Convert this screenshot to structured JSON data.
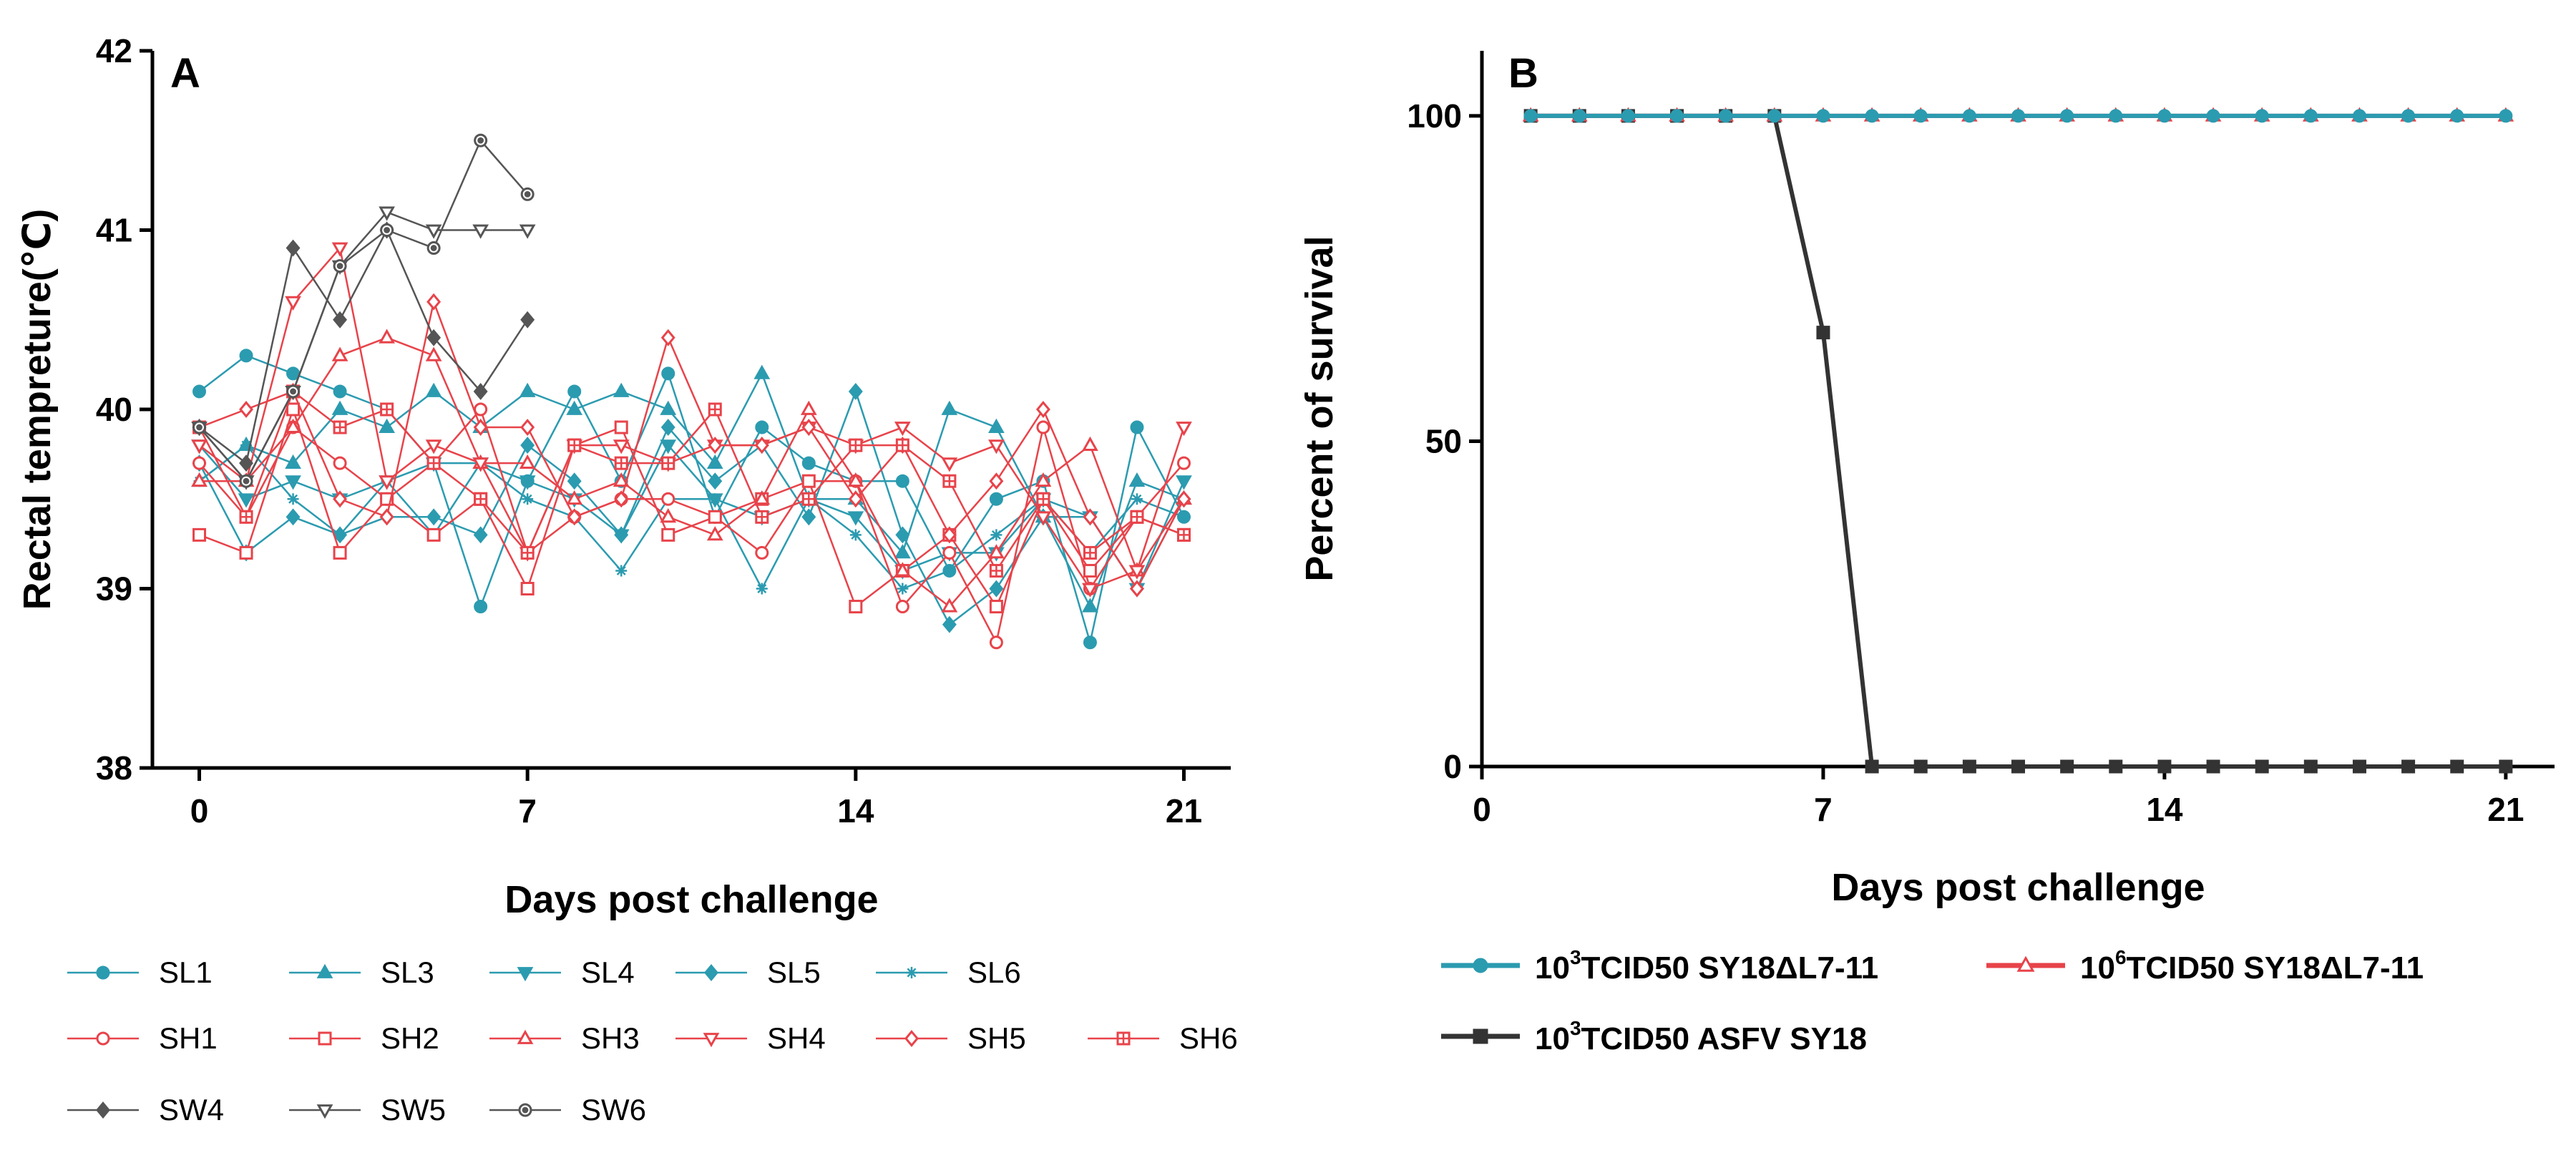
{
  "chart_data": [
    {
      "panel_label": "A",
      "type": "line",
      "xlabel": "Days post challenge",
      "ylabel": "Rectal tempreture(℃)",
      "xlim": [
        -1,
        22
      ],
      "ylim": [
        38,
        42
      ],
      "xticks": [
        0,
        7,
        14,
        21
      ],
      "yticks": [
        38,
        39,
        40,
        41,
        42
      ],
      "grid": false,
      "legend_position": "bottom",
      "series": [
        {
          "name": "SL1",
          "color": "#2b9bb0",
          "marker": "circle",
          "x": [
            0,
            1,
            2,
            3,
            4,
            5,
            6,
            7,
            8,
            9,
            10,
            11,
            12,
            13,
            14,
            15,
            16,
            17,
            18,
            19,
            20,
            21
          ],
          "values": [
            40.1,
            40.3,
            40.2,
            40.1,
            40.0,
            39.7,
            38.9,
            39.6,
            40.1,
            39.6,
            40.2,
            39.4,
            39.9,
            39.7,
            39.6,
            39.6,
            39.1,
            39.5,
            39.6,
            38.7,
            39.9,
            39.4
          ]
        },
        {
          "name": "SL3",
          "color": "#2b9bb0",
          "marker": "triangle-up",
          "x": [
            0,
            1,
            2,
            3,
            4,
            5,
            6,
            7,
            8,
            9,
            10,
            11,
            12,
            13,
            14,
            15,
            16,
            17,
            18,
            19,
            20,
            21
          ],
          "values": [
            39.6,
            39.8,
            39.7,
            40.0,
            39.9,
            40.1,
            39.9,
            40.1,
            40.0,
            40.1,
            40.0,
            39.7,
            40.2,
            39.5,
            39.5,
            39.2,
            40.0,
            39.9,
            39.4,
            38.9,
            39.6,
            39.5
          ]
        },
        {
          "name": "SL4",
          "color": "#2b9bb0",
          "marker": "triangle-down",
          "x": [
            0,
            1,
            2,
            3,
            4,
            5,
            6,
            7,
            8,
            9,
            10,
            11,
            12,
            13,
            14,
            15,
            16,
            17,
            18,
            19,
            20,
            21
          ],
          "values": [
            39.8,
            39.5,
            39.6,
            39.5,
            39.6,
            39.7,
            39.7,
            39.6,
            39.5,
            39.3,
            39.8,
            39.5,
            39.4,
            39.5,
            39.4,
            39.1,
            39.2,
            39.2,
            39.5,
            39.4,
            39.0,
            39.6
          ]
        },
        {
          "name": "SL5",
          "color": "#2b9bb0",
          "marker": "diamond",
          "x": [
            0,
            1,
            2,
            3,
            4,
            5,
            6,
            7,
            8,
            9,
            10,
            11,
            12,
            13,
            14,
            15,
            16,
            17,
            18,
            19,
            20,
            21
          ],
          "values": [
            39.7,
            39.2,
            39.4,
            39.3,
            39.4,
            39.4,
            39.3,
            39.8,
            39.6,
            39.3,
            39.9,
            39.6,
            39.8,
            39.4,
            40.1,
            39.3,
            38.8,
            39.0,
            39.4,
            39.4,
            39.0,
            39.5
          ]
        },
        {
          "name": "SL6",
          "color": "#2b9bb0",
          "marker": "asterisk",
          "x": [
            0,
            1,
            2,
            3,
            4,
            5,
            6,
            7,
            8,
            9,
            10,
            11,
            12,
            13,
            14,
            15,
            16,
            17,
            18,
            19,
            20,
            21
          ],
          "values": [
            39.6,
            39.8,
            39.5,
            39.3,
            39.6,
            39.3,
            39.7,
            39.5,
            39.4,
            39.1,
            39.5,
            39.5,
            39.0,
            39.5,
            39.3,
            39.0,
            39.1,
            39.3,
            39.5,
            39.2,
            39.5,
            39.4
          ]
        },
        {
          "name": "SH1",
          "color": "#e8434a",
          "marker": "circle-open",
          "x": [
            0,
            1,
            2,
            3,
            4,
            5,
            6,
            7,
            8,
            9,
            10,
            11,
            12,
            13,
            14,
            15,
            16,
            17,
            18,
            19,
            20,
            21
          ],
          "values": [
            39.7,
            39.4,
            39.9,
            39.7,
            39.5,
            39.7,
            40.0,
            39.2,
            39.4,
            39.5,
            39.5,
            39.4,
            39.2,
            39.6,
            39.6,
            38.9,
            39.2,
            38.7,
            39.9,
            39.0,
            39.4,
            39.7
          ]
        },
        {
          "name": "SH2",
          "color": "#e8434a",
          "marker": "square-open",
          "x": [
            0,
            1,
            2,
            3,
            4,
            5,
            6,
            7,
            8,
            9,
            10,
            11,
            12,
            13,
            14,
            15,
            16,
            17,
            18,
            19,
            20,
            21
          ],
          "values": [
            39.3,
            39.2,
            40.0,
            39.2,
            39.5,
            39.3,
            39.5,
            39.0,
            39.8,
            39.9,
            39.3,
            39.4,
            39.5,
            39.6,
            38.9,
            39.1,
            39.3,
            38.9,
            39.5,
            39.1,
            39.4,
            39.3
          ]
        },
        {
          "name": "SH3",
          "color": "#e8434a",
          "marker": "triangle-up-open",
          "x": [
            0,
            1,
            2,
            3,
            4,
            5,
            6,
            7,
            8,
            9,
            10,
            11,
            12,
            13,
            14,
            15,
            16,
            17,
            18,
            19,
            20,
            21
          ],
          "values": [
            39.6,
            39.6,
            39.9,
            40.3,
            40.4,
            40.3,
            39.7,
            39.7,
            39.5,
            39.6,
            39.4,
            39.3,
            39.5,
            40.0,
            39.6,
            39.1,
            38.9,
            39.2,
            39.6,
            39.8,
            39.1,
            39.5
          ]
        },
        {
          "name": "SH4",
          "color": "#e8434a",
          "marker": "triangle-down-open",
          "x": [
            0,
            1,
            2,
            3,
            4,
            5,
            6,
            7,
            8,
            9,
            10,
            11,
            12,
            13,
            14,
            15,
            16,
            17,
            18,
            19,
            20,
            21
          ],
          "values": [
            39.8,
            39.6,
            40.6,
            40.9,
            39.6,
            39.8,
            39.7,
            39.2,
            39.8,
            39.8,
            39.7,
            39.8,
            39.8,
            39.9,
            39.8,
            39.9,
            39.7,
            39.8,
            39.4,
            39.0,
            39.1,
            39.9
          ]
        },
        {
          "name": "SH5",
          "color": "#e8434a",
          "marker": "diamond-open",
          "x": [
            0,
            1,
            2,
            3,
            4,
            5,
            6,
            7,
            8,
            9,
            10,
            11,
            12,
            13,
            14,
            15,
            16,
            17,
            18,
            19,
            20,
            21
          ],
          "values": [
            39.9,
            40.0,
            40.1,
            39.5,
            39.4,
            40.6,
            39.9,
            39.9,
            39.4,
            39.5,
            40.4,
            39.8,
            39.8,
            39.9,
            39.5,
            39.8,
            39.3,
            39.6,
            40.0,
            39.4,
            39.0,
            39.5
          ]
        },
        {
          "name": "SH6",
          "color": "#e8434a",
          "marker": "square-cross",
          "x": [
            0,
            1,
            2,
            3,
            4,
            5,
            6,
            7,
            8,
            9,
            10,
            11,
            12,
            13,
            14,
            15,
            16,
            17,
            18,
            19,
            20,
            21
          ],
          "values": [
            39.9,
            39.4,
            40.1,
            39.9,
            40.0,
            39.7,
            39.5,
            39.2,
            39.8,
            39.7,
            39.7,
            40.0,
            39.4,
            39.5,
            39.8,
            39.8,
            39.6,
            39.1,
            39.5,
            39.2,
            39.4,
            39.3
          ]
        },
        {
          "name": "SW4",
          "color": "#555555",
          "marker": "diamond",
          "x": [
            0,
            1,
            2,
            3,
            4,
            5,
            6,
            7
          ],
          "values": [
            39.9,
            39.7,
            40.9,
            40.5,
            41.0,
            40.4,
            40.1,
            40.5
          ]
        },
        {
          "name": "SW5",
          "color": "#555555",
          "marker": "triangle-down-open",
          "x": [
            0,
            1,
            2,
            3,
            4,
            5,
            6,
            7
          ],
          "values": [
            39.9,
            39.6,
            40.1,
            40.8,
            41.1,
            41.0,
            41.0,
            41.0
          ]
        },
        {
          "name": "SW6",
          "color": "#555555",
          "marker": "circle-dot",
          "x": [
            0,
            1,
            2,
            3,
            4,
            5,
            6,
            7
          ],
          "values": [
            39.9,
            39.6,
            40.1,
            40.8,
            41.0,
            40.9,
            41.5,
            41.2
          ]
        }
      ]
    },
    {
      "panel_label": "B",
      "type": "line",
      "xlabel": "Days post challenge",
      "ylabel": "Percent of survival",
      "xlim": [
        0,
        22
      ],
      "ylim": [
        0,
        110
      ],
      "xticks": [
        0,
        7,
        14,
        21
      ],
      "yticks": [
        0,
        50,
        100
      ],
      "grid": false,
      "legend_position": "bottom",
      "series": [
        {
          "name_pre": "10",
          "name_sup": "3",
          "name_post": "TCID50 SY18ΔL7-11",
          "color": "#2b9bb0",
          "marker": "circle",
          "x": [
            1,
            2,
            3,
            4,
            5,
            6,
            7,
            8,
            9,
            10,
            11,
            12,
            13,
            14,
            15,
            16,
            17,
            18,
            19,
            20,
            21
          ],
          "values": [
            100,
            100,
            100,
            100,
            100,
            100,
            100,
            100,
            100,
            100,
            100,
            100,
            100,
            100,
            100,
            100,
            100,
            100,
            100,
            100,
            100
          ]
        },
        {
          "name_pre": "10",
          "name_sup": "6",
          "name_post": "TCID50 SY18ΔL7-11",
          "color": "#e8434a",
          "marker": "triangle-up-open",
          "x": [
            1,
            2,
            3,
            4,
            5,
            6,
            7,
            8,
            9,
            10,
            11,
            12,
            13,
            14,
            15,
            16,
            17,
            18,
            19,
            20,
            21
          ],
          "values": [
            100,
            100,
            100,
            100,
            100,
            100,
            100,
            100,
            100,
            100,
            100,
            100,
            100,
            100,
            100,
            100,
            100,
            100,
            100,
            100,
            100
          ]
        },
        {
          "name_pre": "10",
          "name_sup": "3",
          "name_post": "TCID50 ASFV SY18",
          "color": "#333333",
          "marker": "square",
          "x": [
            1,
            2,
            3,
            4,
            5,
            6,
            7,
            8,
            9,
            10,
            11,
            12,
            13,
            14,
            15,
            16,
            17,
            18,
            19,
            20,
            21
          ],
          "values": [
            100,
            100,
            100,
            100,
            100,
            100,
            66.7,
            0,
            0,
            0,
            0,
            0,
            0,
            0,
            0,
            0,
            0,
            0,
            0,
            0,
            0
          ]
        }
      ]
    }
  ]
}
